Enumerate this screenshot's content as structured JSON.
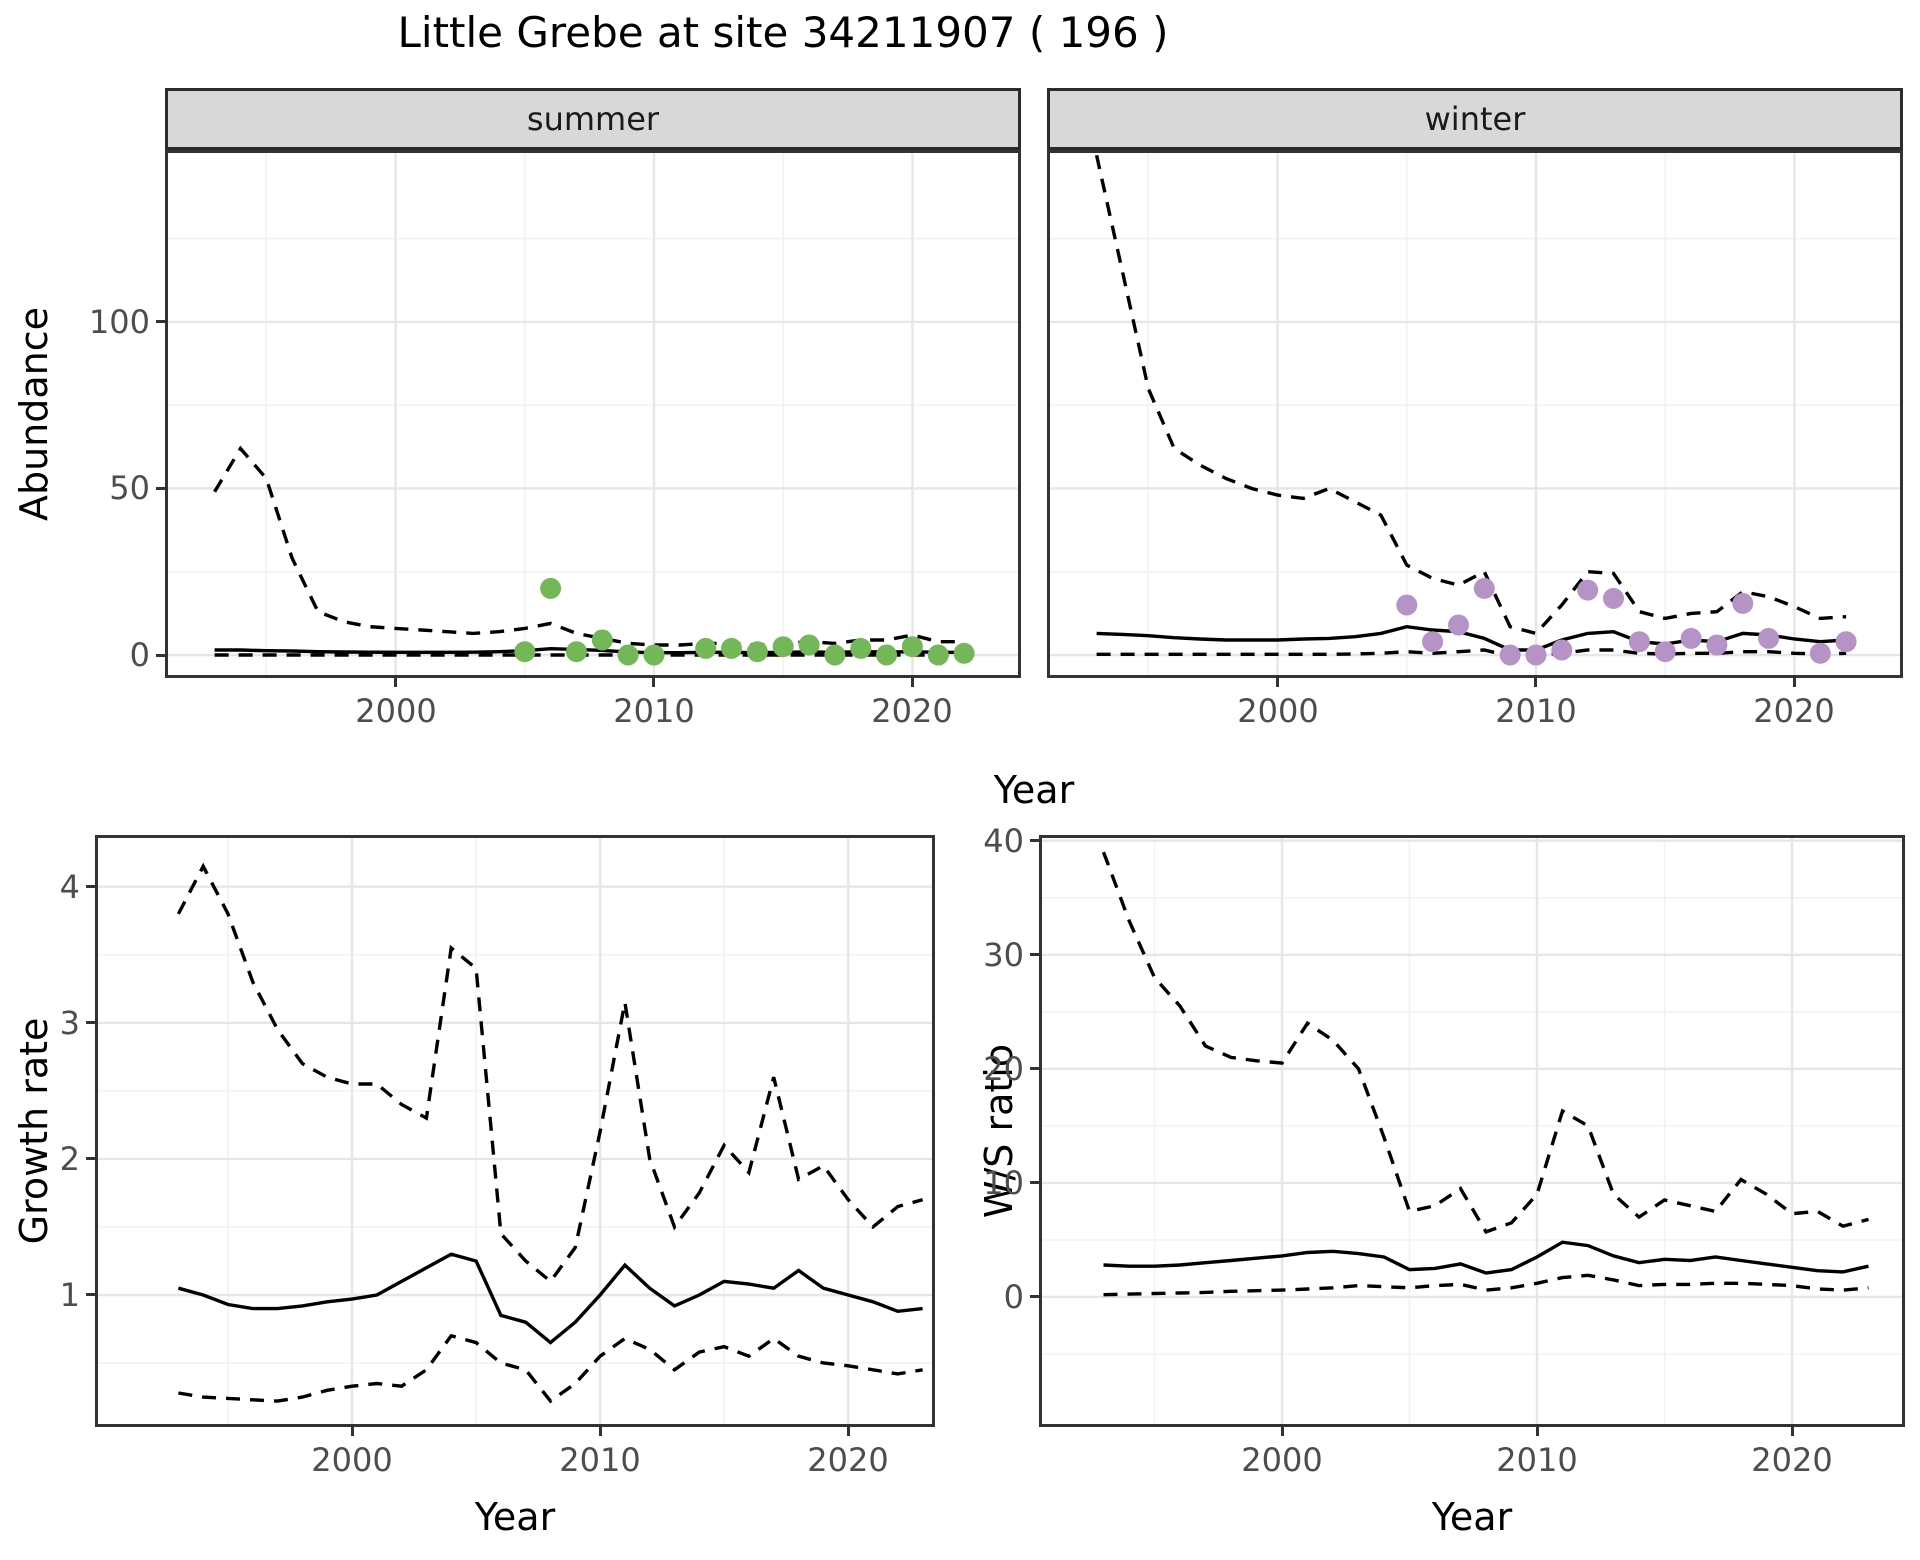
{
  "title": "Little Grebe at site 34211907 ( 196 )",
  "axis_labels": {
    "top_y": "Abundance",
    "top_x": "Year",
    "bottom_left_y": "Growth rate",
    "bottom_left_x": "Year",
    "bottom_right_y": "W/S ratio",
    "bottom_right_x": "Year"
  },
  "facets": {
    "summer": "summer",
    "winter": "winter"
  },
  "colors": {
    "summer_points": "#74b758",
    "winter_points": "#b593c7",
    "median_line": "#000000",
    "ci_line": "#000000",
    "strip_bg": "#d8d8d8",
    "panel_border": "#333333",
    "grid_major": "#e6e6e6",
    "grid_minor": "#f2f2f2",
    "tick_text": "#4d4d4d"
  },
  "chart_data": [
    {
      "name": "abundance-summer",
      "type": "line",
      "facet_label": "summer",
      "ylabel": "Abundance",
      "xlabel": "Year",
      "xlim": [
        1991.08,
        2024.2
      ],
      "ylim": [
        -6.9,
        151.6
      ],
      "xticks": [
        2000,
        2010,
        2020
      ],
      "yticks": [
        0,
        50,
        100
      ],
      "x": [
        1993,
        1994,
        1995,
        1996,
        1997,
        1998,
        1999,
        2000,
        2001,
        2002,
        2003,
        2004,
        2005,
        2006,
        2007,
        2008,
        2009,
        2010,
        2011,
        2012,
        2013,
        2014,
        2015,
        2016,
        2017,
        2018,
        2019,
        2020,
        2021,
        2022
      ],
      "series": [
        {
          "name": "upper_ci",
          "style": "dashed",
          "values": [
            49,
            62,
            53,
            29,
            13,
            10,
            8.5,
            8,
            7.5,
            7,
            6.5,
            7,
            8,
            9.5,
            6.5,
            5,
            3.5,
            3,
            3,
            3.5,
            3.5,
            3,
            3.5,
            4,
            3.5,
            4.5,
            4.5,
            6,
            4,
            4
          ]
        },
        {
          "name": "median",
          "style": "solid",
          "values": [
            1.5,
            1.5,
            1.3,
            1.2,
            1,
            0.9,
            0.85,
            0.8,
            0.8,
            0.8,
            0.85,
            1,
            1.3,
            1.9,
            1.7,
            1.4,
            0.9,
            0.7,
            0.7,
            0.8,
            0.8,
            0.7,
            0.8,
            0.9,
            0.8,
            1,
            0.9,
            1,
            0.8,
            0.8
          ]
        },
        {
          "name": "lower_ci",
          "style": "dashed",
          "values": [
            0,
            0,
            0,
            0,
            0,
            0,
            0,
            0,
            0,
            0,
            0,
            0,
            0,
            0,
            0,
            0,
            0,
            0,
            0,
            0,
            0,
            0,
            0,
            0,
            0,
            0,
            0,
            0,
            0,
            0
          ]
        }
      ],
      "points": {
        "name": "observed-counts",
        "color_key": "summer_points",
        "x": [
          2005,
          2006,
          2007,
          2008,
          2009,
          2010,
          2012,
          2013,
          2014,
          2015,
          2016,
          2017,
          2018,
          2019,
          2020,
          2021,
          2022
        ],
        "y": [
          1,
          20,
          1,
          4.5,
          0,
          0,
          2,
          2,
          1,
          2.5,
          3,
          0,
          2,
          0,
          2.5,
          0,
          0.5
        ]
      }
    },
    {
      "name": "abundance-winter",
      "type": "line",
      "facet_label": "winter",
      "ylabel": "Abundance",
      "xlabel": "Year",
      "xlim": [
        1991.08,
        2024.2
      ],
      "ylim": [
        -6.9,
        151.6
      ],
      "xticks": [
        2000,
        2010,
        2020
      ],
      "yticks": [
        0,
        50,
        100
      ],
      "x": [
        1993,
        1994,
        1995,
        1996,
        1997,
        1998,
        1999,
        2000,
        2001,
        2002,
        2003,
        2004,
        2005,
        2006,
        2007,
        2008,
        2009,
        2010,
        2011,
        2012,
        2013,
        2014,
        2015,
        2016,
        2017,
        2018,
        2019,
        2020,
        2021,
        2022
      ],
      "series": [
        {
          "name": "upper_ci",
          "style": "dashed",
          "values": [
            150,
            115,
            80,
            62,
            57,
            53,
            50,
            48,
            47,
            50,
            46,
            42,
            27,
            23,
            21,
            25,
            8.5,
            6.5,
            15,
            25,
            24.5,
            13,
            11,
            12.5,
            13,
            19,
            17.5,
            14.5,
            11,
            11.5
          ]
        },
        {
          "name": "median",
          "style": "solid",
          "values": [
            6.5,
            6.2,
            5.8,
            5.2,
            4.8,
            4.5,
            4.5,
            4.5,
            4.8,
            5,
            5.5,
            6.5,
            8.5,
            7.5,
            7,
            5,
            1.5,
            1.5,
            4.5,
            6.5,
            7,
            4,
            3.3,
            4.5,
            4,
            6.5,
            6,
            4.8,
            4,
            4.5
          ]
        },
        {
          "name": "lower_ci",
          "style": "dashed",
          "values": [
            0.2,
            0.2,
            0.2,
            0.2,
            0.2,
            0.2,
            0.2,
            0.2,
            0.2,
            0.2,
            0.3,
            0.5,
            1,
            0.5,
            1,
            1.5,
            -0.3,
            0,
            0.5,
            1.5,
            1.5,
            0.5,
            0.3,
            0.5,
            0.5,
            1,
            1,
            0.5,
            0.3,
            0.5
          ]
        }
      ],
      "points": {
        "name": "observed-counts",
        "color_key": "winter_points",
        "x": [
          2005,
          2006,
          2007,
          2008,
          2009,
          2010,
          2011,
          2012,
          2013,
          2014,
          2015,
          2016,
          2017,
          2018,
          2019,
          2021,
          2022
        ],
        "y": [
          15,
          4,
          9,
          20,
          0,
          0,
          1.5,
          19.5,
          17,
          4,
          1,
          5,
          3,
          15.5,
          5,
          0.5,
          4
        ]
      }
    },
    {
      "name": "growth-rate",
      "type": "line",
      "ylabel": "Growth rate",
      "xlabel": "Year",
      "xlim": [
        1989.64,
        2023.5
      ],
      "ylim": [
        0.03,
        4.38
      ],
      "xticks": [
        2000,
        2010,
        2020
      ],
      "yticks": [
        1,
        2,
        3,
        4
      ],
      "x": [
        1993,
        1994,
        1995,
        1996,
        1997,
        1998,
        1999,
        2000,
        2001,
        2002,
        2003,
        2004,
        2005,
        2006,
        2007,
        2008,
        2009,
        2010,
        2011,
        2012,
        2013,
        2014,
        2015,
        2016,
        2017,
        2018,
        2019,
        2020,
        2021,
        2022,
        2023
      ],
      "series": [
        {
          "name": "upper_ci",
          "style": "dashed",
          "values": [
            3.8,
            4.15,
            3.8,
            3.3,
            2.95,
            2.7,
            2.6,
            2.55,
            2.55,
            2.4,
            2.3,
            3.55,
            3.4,
            1.45,
            1.25,
            1.1,
            1.35,
            2.2,
            3.15,
            2,
            1.5,
            1.75,
            2.1,
            1.9,
            2.6,
            1.85,
            1.95,
            1.7,
            1.5,
            1.65,
            1.7
          ]
        },
        {
          "name": "median",
          "style": "solid",
          "values": [
            1.05,
            1,
            0.93,
            0.9,
            0.9,
            0.92,
            0.95,
            0.97,
            1,
            1.1,
            1.2,
            1.3,
            1.25,
            0.85,
            0.8,
            0.65,
            0.8,
            1,
            1.22,
            1.05,
            0.92,
            1,
            1.1,
            1.08,
            1.05,
            1.18,
            1.05,
            1,
            0.95,
            0.88,
            0.9
          ]
        },
        {
          "name": "lower_ci",
          "style": "dashed",
          "values": [
            0.28,
            0.25,
            0.24,
            0.23,
            0.22,
            0.25,
            0.3,
            0.33,
            0.35,
            0.33,
            0.45,
            0.7,
            0.65,
            0.5,
            0.45,
            0.22,
            0.35,
            0.55,
            0.68,
            0.6,
            0.45,
            0.58,
            0.62,
            0.55,
            0.68,
            0.55,
            0.5,
            0.48,
            0.45,
            0.42,
            0.45
          ]
        }
      ]
    },
    {
      "name": "ws-ratio",
      "type": "line",
      "ylabel": "W/S ratio",
      "xlabel": "Year",
      "xlim": [
        1990.47,
        2024.43
      ],
      "ylim": [
        -11.4,
        40.5
      ],
      "xticks": [
        2000,
        2010,
        2020
      ],
      "yticks": [
        0,
        10,
        20,
        30,
        40
      ],
      "x": [
        1993,
        1994,
        1995,
        1996,
        1997,
        1998,
        1999,
        2000,
        2001,
        2002,
        2003,
        2004,
        2005,
        2006,
        2007,
        2008,
        2009,
        2010,
        2011,
        2012,
        2013,
        2014,
        2015,
        2016,
        2017,
        2018,
        2019,
        2020,
        2021,
        2022,
        2023
      ],
      "series": [
        {
          "name": "upper_ci",
          "style": "dashed",
          "values": [
            39,
            33,
            28,
            25.5,
            22,
            21,
            20.7,
            20.5,
            24,
            22.5,
            20,
            14,
            7.5,
            8,
            9.5,
            5.7,
            6.5,
            9,
            16.3,
            15,
            9,
            7,
            8.5,
            8,
            7.5,
            10.3,
            9,
            7.3,
            7.5,
            6.2,
            6.8
          ]
        },
        {
          "name": "median",
          "style": "solid",
          "values": [
            2.8,
            2.7,
            2.7,
            2.8,
            3,
            3.2,
            3.4,
            3.6,
            3.9,
            4,
            3.8,
            3.5,
            2.4,
            2.5,
            2.9,
            2.1,
            2.4,
            3.5,
            4.8,
            4.5,
            3.6,
            3,
            3.3,
            3.2,
            3.5,
            3.2,
            2.9,
            2.6,
            2.3,
            2.2,
            2.7
          ]
        },
        {
          "name": "lower_ci",
          "style": "dashed",
          "values": [
            0.2,
            0.25,
            0.3,
            0.35,
            0.4,
            0.5,
            0.55,
            0.6,
            0.7,
            0.8,
            1,
            0.9,
            0.8,
            1,
            1.1,
            0.6,
            0.8,
            1.2,
            1.7,
            1.9,
            1.5,
            1,
            1.1,
            1.1,
            1.2,
            1.2,
            1.1,
            1,
            0.7,
            0.6,
            0.8
          ]
        }
      ]
    }
  ]
}
